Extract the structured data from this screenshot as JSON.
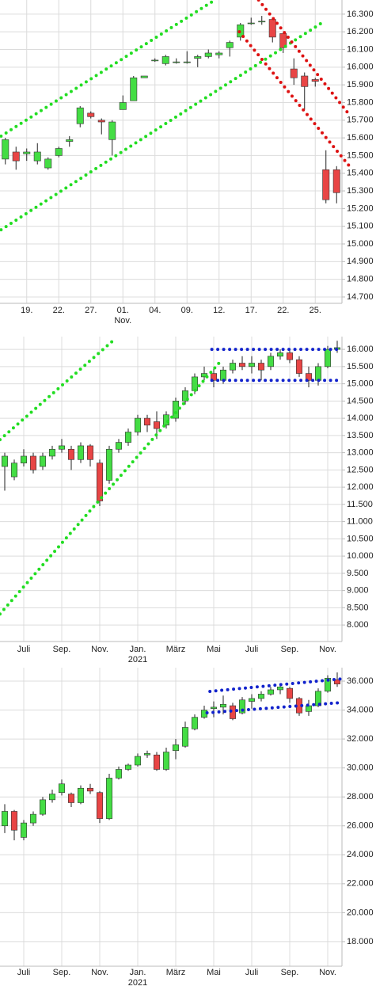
{
  "chart_data": [
    {
      "type": "candlestick",
      "up_color": "#44dd44",
      "down_color": "#e84545",
      "grid": true,
      "categories": [
        null,
        null,
        "19.",
        null,
        null,
        "22.",
        null,
        null,
        "27.",
        null,
        null,
        "01.",
        null,
        null,
        "04.",
        null,
        null,
        "09.",
        null,
        null,
        "12.",
        null,
        null,
        "17.",
        null,
        null,
        "22.",
        null,
        null,
        "25.",
        null,
        null
      ],
      "sub_labels": [
        {
          "index": 11,
          "label": "Nov."
        }
      ],
      "open": [
        15480,
        15520,
        15510,
        15470,
        15430,
        15500,
        15580,
        15680,
        15740,
        15700,
        15590,
        15760,
        15810,
        15940,
        16040,
        16020,
        16030,
        16030,
        16050,
        16060,
        16070,
        16110,
        16170,
        16250,
        16260,
        16270,
        16190,
        15990,
        15950,
        15930,
        15420,
        15420
      ],
      "high": [
        15600,
        15550,
        15540,
        15570,
        15490,
        15550,
        15610,
        15780,
        15750,
        15710,
        15700,
        15840,
        15950,
        15950,
        16050,
        16070,
        16050,
        16090,
        16070,
        16100,
        16090,
        16150,
        16250,
        16280,
        16290,
        16280,
        16190,
        16050,
        15970,
        15940,
        15530,
        15440
      ],
      "low": [
        15450,
        15420,
        15470,
        15450,
        15420,
        15490,
        15550,
        15660,
        15710,
        15620,
        15500,
        15760,
        15810,
        15940,
        16030,
        16010,
        16020,
        16020,
        16000,
        16050,
        16050,
        16060,
        16150,
        16240,
        16240,
        16140,
        16080,
        15900,
        15760,
        15890,
        15230,
        15230
      ],
      "close": [
        15590,
        15470,
        15520,
        15520,
        15480,
        15540,
        15590,
        15770,
        15720,
        15690,
        15690,
        15800,
        15940,
        15950,
        16040,
        16060,
        16030,
        16030,
        16060,
        16080,
        16080,
        16140,
        16240,
        16250,
        16260,
        16170,
        16110,
        15940,
        15890,
        15920,
        15250,
        15290
      ],
      "ylim": [
        14664,
        16380
      ],
      "yticks": [
        {
          "value": 14700,
          "label": "14.700"
        },
        {
          "value": 14800,
          "label": "14.800"
        },
        {
          "value": 14900,
          "label": "14.900"
        },
        {
          "value": 15000,
          "label": "15.000"
        },
        {
          "value": 15100,
          "label": "15.100"
        },
        {
          "value": 15200,
          "label": "15.200"
        },
        {
          "value": 15300,
          "label": "15.300"
        },
        {
          "value": 15400,
          "label": "15.400"
        },
        {
          "value": 15500,
          "label": "15.500"
        },
        {
          "value": 15600,
          "label": "15.600"
        },
        {
          "value": 15700,
          "label": "15.700"
        },
        {
          "value": 15800,
          "label": "15.800"
        },
        {
          "value": 15900,
          "label": "15.900"
        },
        {
          "value": 16000,
          "label": "16.000"
        },
        {
          "value": 16100,
          "label": "16.100"
        },
        {
          "value": 16200,
          "label": "16.200"
        },
        {
          "value": 16300,
          "label": "16.300"
        }
      ],
      "trendlines": [
        {
          "color": "#22dd22",
          "x": [
            -0.4,
            19.6
          ],
          "y": [
            15610,
            16380
          ]
        },
        {
          "color": "#22dd22",
          "x": [
            -0.4,
            29.6
          ],
          "y": [
            15080,
            16250
          ]
        },
        {
          "color": "#dd1111",
          "x": [
            23.7,
            32.2
          ],
          "y": [
            16380,
            15730
          ]
        },
        {
          "color": "#dd1111",
          "x": [
            21.9,
            32.2
          ],
          "y": [
            16200,
            15440
          ]
        }
      ]
    },
    {
      "type": "candlestick",
      "up_color": "#44dd44",
      "down_color": "#e84545",
      "grid": true,
      "categories": [
        null,
        null,
        "Juli",
        null,
        null,
        null,
        "Sep.",
        null,
        null,
        null,
        "Nov.",
        null,
        null,
        null,
        "Jan.",
        null,
        null,
        null,
        "März",
        null,
        null,
        null,
        "Mai",
        null,
        null,
        null,
        "Juli",
        null,
        null,
        null,
        "Sep.",
        null,
        null,
        null,
        "Nov.",
        null
      ],
      "sub_labels": [
        {
          "index": 14,
          "label": "2021"
        }
      ],
      "open": [
        12600,
        12300,
        12700,
        12900,
        12600,
        12900,
        13100,
        13100,
        12800,
        13200,
        12700,
        12200,
        13100,
        13300,
        13600,
        14000,
        13900,
        13800,
        14000,
        14500,
        14800,
        15200,
        15300,
        15100,
        15400,
        15600,
        15500,
        15600,
        15500,
        15800,
        15900,
        15700,
        15300,
        15100,
        15500,
        16000
      ],
      "high": [
        13000,
        12800,
        13100,
        13000,
        13000,
        13200,
        13400,
        13200,
        13300,
        13250,
        12800,
        13200,
        13400,
        13700,
        14100,
        14100,
        14200,
        14200,
        14600,
        14900,
        15300,
        15500,
        15450,
        15500,
        15700,
        15800,
        15800,
        15700,
        15900,
        16000,
        16000,
        15800,
        15500,
        15600,
        16100,
        16250
      ],
      "low": [
        11900,
        12200,
        12600,
        12400,
        12500,
        12800,
        13000,
        12500,
        12700,
        12600,
        11450,
        12100,
        13000,
        13200,
        13500,
        13600,
        13400,
        13700,
        13900,
        14400,
        14700,
        15100,
        14900,
        15000,
        15300,
        15400,
        15300,
        15100,
        15400,
        15700,
        15600,
        15200,
        14900,
        14950,
        15450,
        15900
      ],
      "close": [
        12900,
        12700,
        12900,
        12500,
        12900,
        13100,
        13200,
        12800,
        13200,
        12800,
        11600,
        13100,
        13300,
        13600,
        14000,
        13800,
        13700,
        14100,
        14500,
        14800,
        15200,
        15300,
        15100,
        15400,
        15600,
        15500,
        15600,
        15400,
        15800,
        15900,
        15700,
        15300,
        15100,
        15500,
        16000,
        16050
      ],
      "ylim": [
        7520,
        16370
      ],
      "yticks": [
        {
          "value": 8000,
          "label": "8.000"
        },
        {
          "value": 8500,
          "label": "8.500"
        },
        {
          "value": 9000,
          "label": "9.000"
        },
        {
          "value": 9500,
          "label": "9.500"
        },
        {
          "value": 10000,
          "label": "10.000"
        },
        {
          "value": 10500,
          "label": "10.500"
        },
        {
          "value": 11000,
          "label": "11.000"
        },
        {
          "value": 11500,
          "label": "11.500"
        },
        {
          "value": 12000,
          "label": "12.000"
        },
        {
          "value": 12500,
          "label": "12.500"
        },
        {
          "value": 13000,
          "label": "13.000"
        },
        {
          "value": 13500,
          "label": "13.500"
        },
        {
          "value": 14000,
          "label": "14.000"
        },
        {
          "value": 14500,
          "label": "14.500"
        },
        {
          "value": 15000,
          "label": "15.000"
        },
        {
          "value": 15500,
          "label": "15.500"
        },
        {
          "value": 16000,
          "label": "16.000"
        }
      ],
      "trendlines": [
        {
          "color": "#22dd22",
          "x": [
            -0.5,
            11.6
          ],
          "y": [
            13380,
            16300
          ]
        },
        {
          "color": "#22dd22",
          "x": [
            -0.5,
            22.8
          ],
          "y": [
            8320,
            15680
          ]
        },
        {
          "color": "#1122cc",
          "x": [
            21.8,
            35.5
          ],
          "y": [
            16000,
            16000
          ]
        },
        {
          "color": "#1122cc",
          "x": [
            21.8,
            35.5
          ],
          "y": [
            15100,
            15100
          ]
        }
      ]
    },
    {
      "type": "candlestick",
      "up_color": "#44dd44",
      "down_color": "#e84545",
      "grid": true,
      "categories": [
        null,
        null,
        "Juli",
        null,
        null,
        null,
        "Sep.",
        null,
        null,
        null,
        "Nov.",
        null,
        null,
        null,
        "Jan.",
        null,
        null,
        null,
        "März",
        null,
        null,
        null,
        "Mai",
        null,
        null,
        null,
        "Juli",
        null,
        null,
        null,
        "Sep.",
        null,
        null,
        null,
        "Nov.",
        null
      ],
      "sub_labels": [
        {
          "index": 14,
          "label": "2021"
        }
      ],
      "open": [
        26000,
        27000,
        25200,
        26200,
        26800,
        27800,
        28300,
        28200,
        27600,
        28600,
        28300,
        26500,
        29300,
        29900,
        30200,
        30900,
        30900,
        29900,
        31200,
        31500,
        32700,
        33500,
        34100,
        34200,
        34300,
        33800,
        34600,
        34800,
        35100,
        35400,
        35500,
        34800,
        33900,
        34300,
        35300,
        36100
      ],
      "high": [
        27500,
        27100,
        26400,
        27000,
        28000,
        28500,
        29200,
        28300,
        28800,
        28900,
        28400,
        29600,
        30100,
        30300,
        31000,
        31200,
        31100,
        31400,
        32000,
        33200,
        33700,
        34300,
        34600,
        35000,
        34500,
        34900,
        35100,
        35300,
        35600,
        35700,
        35600,
        34900,
        34700,
        35500,
        36400,
        36600
      ],
      "low": [
        25500,
        25000,
        25000,
        26000,
        26700,
        27600,
        28100,
        27300,
        27500,
        28200,
        26200,
        26400,
        29200,
        29800,
        30100,
        30700,
        29800,
        29800,
        30600,
        31400,
        32600,
        33400,
        33500,
        33700,
        33300,
        33700,
        34100,
        34600,
        35000,
        35100,
        34500,
        33600,
        33600,
        34200,
        35200,
        35600
      ],
      "close": [
        27000,
        25700,
        26200,
        26800,
        27800,
        28200,
        28900,
        27600,
        28600,
        28400,
        26500,
        29300,
        29900,
        30200,
        30800,
        31000,
        29900,
        31100,
        31600,
        32800,
        33500,
        34000,
        34200,
        34400,
        33400,
        34700,
        34800,
        35100,
        35400,
        35600,
        34800,
        33800,
        34300,
        35300,
        36200,
        35800
      ],
      "ylim": [
        16300,
        36930
      ],
      "yticks": [
        {
          "value": 18000,
          "label": "18.000"
        },
        {
          "value": 20000,
          "label": "20.000"
        },
        {
          "value": 22000,
          "label": "22.000"
        },
        {
          "value": 24000,
          "label": "24.000"
        },
        {
          "value": 26000,
          "label": "26.000"
        },
        {
          "value": 28000,
          "label": "28.000"
        },
        {
          "value": 30000,
          "label": "30.000"
        },
        {
          "value": 32000,
          "label": "32.000"
        },
        {
          "value": 34000,
          "label": "34.000"
        },
        {
          "value": 36000,
          "label": "36.000"
        }
      ],
      "trendlines": [
        {
          "color": "#1122cc",
          "x": [
            21.6,
            35.5
          ],
          "y": [
            35290,
            36160
          ]
        },
        {
          "color": "#1122cc",
          "x": [
            21.3,
            35.5
          ],
          "y": [
            33810,
            34520
          ]
        }
      ]
    }
  ]
}
